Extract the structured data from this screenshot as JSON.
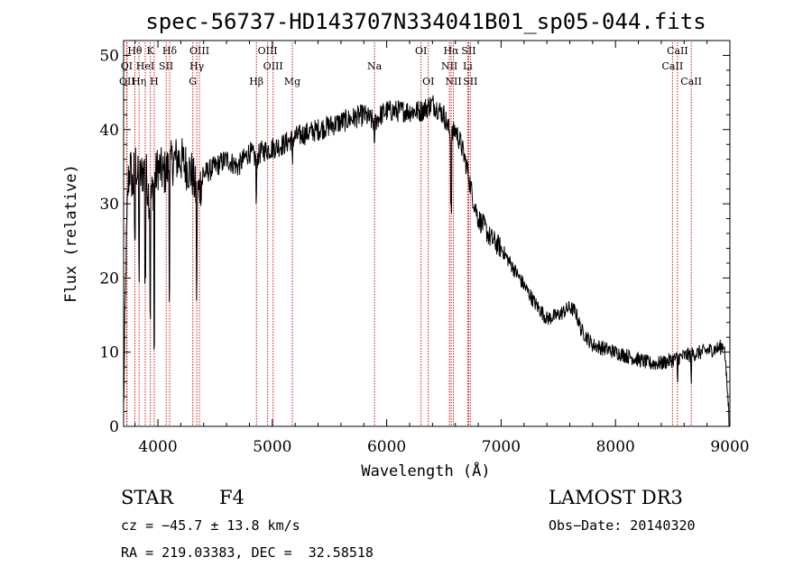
{
  "chart_data": {
    "type": "line",
    "title": "spec-56737-HD143707N334041B01_sp05-044.fits",
    "xlabel": "Wavelength (Å)",
    "ylabel": "Flux (relative)",
    "xlim": [
      3700,
      9000
    ],
    "ylim": [
      0,
      52
    ],
    "x_ticks": [
      4000,
      5000,
      6000,
      7000,
      8000,
      9000
    ],
    "y_ticks": [
      0,
      10,
      20,
      30,
      40,
      50
    ],
    "spectrum_anchor_points": {
      "x": [
        3700,
        3720,
        3740,
        3760,
        3780,
        3800,
        3830,
        3860,
        3890,
        3930,
        3970,
        4000,
        4050,
        4100,
        4150,
        4200,
        4250,
        4300,
        4340,
        4400,
        4500,
        4600,
        4700,
        4800,
        4861,
        4900,
        5000,
        5100,
        5200,
        5300,
        5400,
        5500,
        5600,
        5700,
        5800,
        5890,
        5950,
        6000,
        6100,
        6200,
        6300,
        6400,
        6500,
        6563,
        6600,
        6650,
        6700,
        6750,
        6800,
        6850,
        6900,
        7000,
        7100,
        7200,
        7300,
        7400,
        7500,
        7600,
        7650,
        7700,
        7800,
        7900,
        8000,
        8100,
        8200,
        8300,
        8400,
        8500,
        8600,
        8700,
        8800,
        8900,
        8950,
        9000
      ],
      "y": [
        2,
        22,
        33,
        35,
        32,
        36,
        33,
        34,
        35,
        30,
        33,
        35,
        34,
        35,
        36,
        36,
        35,
        34,
        31,
        34,
        35,
        36,
        35,
        37,
        36,
        37,
        37.5,
        38,
        39,
        39.5,
        40,
        40.5,
        41,
        41.5,
        42,
        41,
        42,
        42.5,
        42.5,
        42.5,
        42.5,
        43.5,
        42,
        39,
        40,
        38,
        35,
        31,
        28,
        27,
        25.5,
        24,
        21.5,
        19,
        16.5,
        14.5,
        15,
        16,
        15.5,
        13,
        11,
        10.5,
        10,
        9.5,
        9,
        8.5,
        8.5,
        9,
        9.5,
        9.8,
        10.2,
        10.5,
        11,
        0
      ]
    },
    "spectral_lines": [
      {
        "label": "Hθ",
        "wavelength": 3798,
        "row": 0
      },
      {
        "label": "K",
        "wavelength": 3934,
        "row": 0
      },
      {
        "label": "Hδ",
        "wavelength": 4102,
        "row": 0
      },
      {
        "label": "OIII",
        "wavelength": 4363,
        "row": 0
      },
      {
        "label": "OIII",
        "wavelength": 4959,
        "row": 0
      },
      {
        "label": "OI",
        "wavelength": 6300,
        "row": 0
      },
      {
        "label": "Hα",
        "wavelength": 6563,
        "row": 0
      },
      {
        "label": "SII",
        "wavelength": 6717,
        "row": 0
      },
      {
        "label": "CaII",
        "wavelength": 8542,
        "row": 0
      },
      {
        "label": "OI",
        "wavelength": 3727,
        "row": 1
      },
      {
        "label": "HeI",
        "wavelength": 3889,
        "row": 1
      },
      {
        "label": "SII",
        "wavelength": 4072,
        "row": 1
      },
      {
        "label": "Hγ",
        "wavelength": 4340,
        "row": 1
      },
      {
        "label": "OIII",
        "wavelength": 5007,
        "row": 1
      },
      {
        "label": "Na",
        "wavelength": 5893,
        "row": 1
      },
      {
        "label": "NII",
        "wavelength": 6548,
        "row": 1
      },
      {
        "label": "Li",
        "wavelength": 6708,
        "row": 1
      },
      {
        "label": "CaII",
        "wavelength": 8498,
        "row": 1
      },
      {
        "label": "OII",
        "wavelength": 3730,
        "row": 2
      },
      {
        "label": "Hη",
        "wavelength": 3835,
        "row": 2
      },
      {
        "label": "H",
        "wavelength": 3968,
        "row": 2
      },
      {
        "label": "G",
        "wavelength": 4305,
        "row": 2
      },
      {
        "label": "Hβ",
        "wavelength": 4861,
        "row": 2
      },
      {
        "label": "Mg",
        "wavelength": 5175,
        "row": 2
      },
      {
        "label": "OI",
        "wavelength": 6364,
        "row": 2
      },
      {
        "label": "NII",
        "wavelength": 6583,
        "row": 2
      },
      {
        "label": "SII",
        "wavelength": 6731,
        "row": 2
      },
      {
        "label": "CaII",
        "wavelength": 8662,
        "row": 2
      }
    ],
    "colors": {
      "spectrum": "#000000",
      "line_markers": "#cc0000"
    }
  },
  "info": {
    "object_class": "STAR",
    "subclass": "F4",
    "survey": "LAMOST DR3",
    "cz": "cz = −45.7 ± 13.8 km/s",
    "obs_date": "Obs−Date: 20140320",
    "coords": "RA = 219.03383, DEC =  32.58518"
  }
}
